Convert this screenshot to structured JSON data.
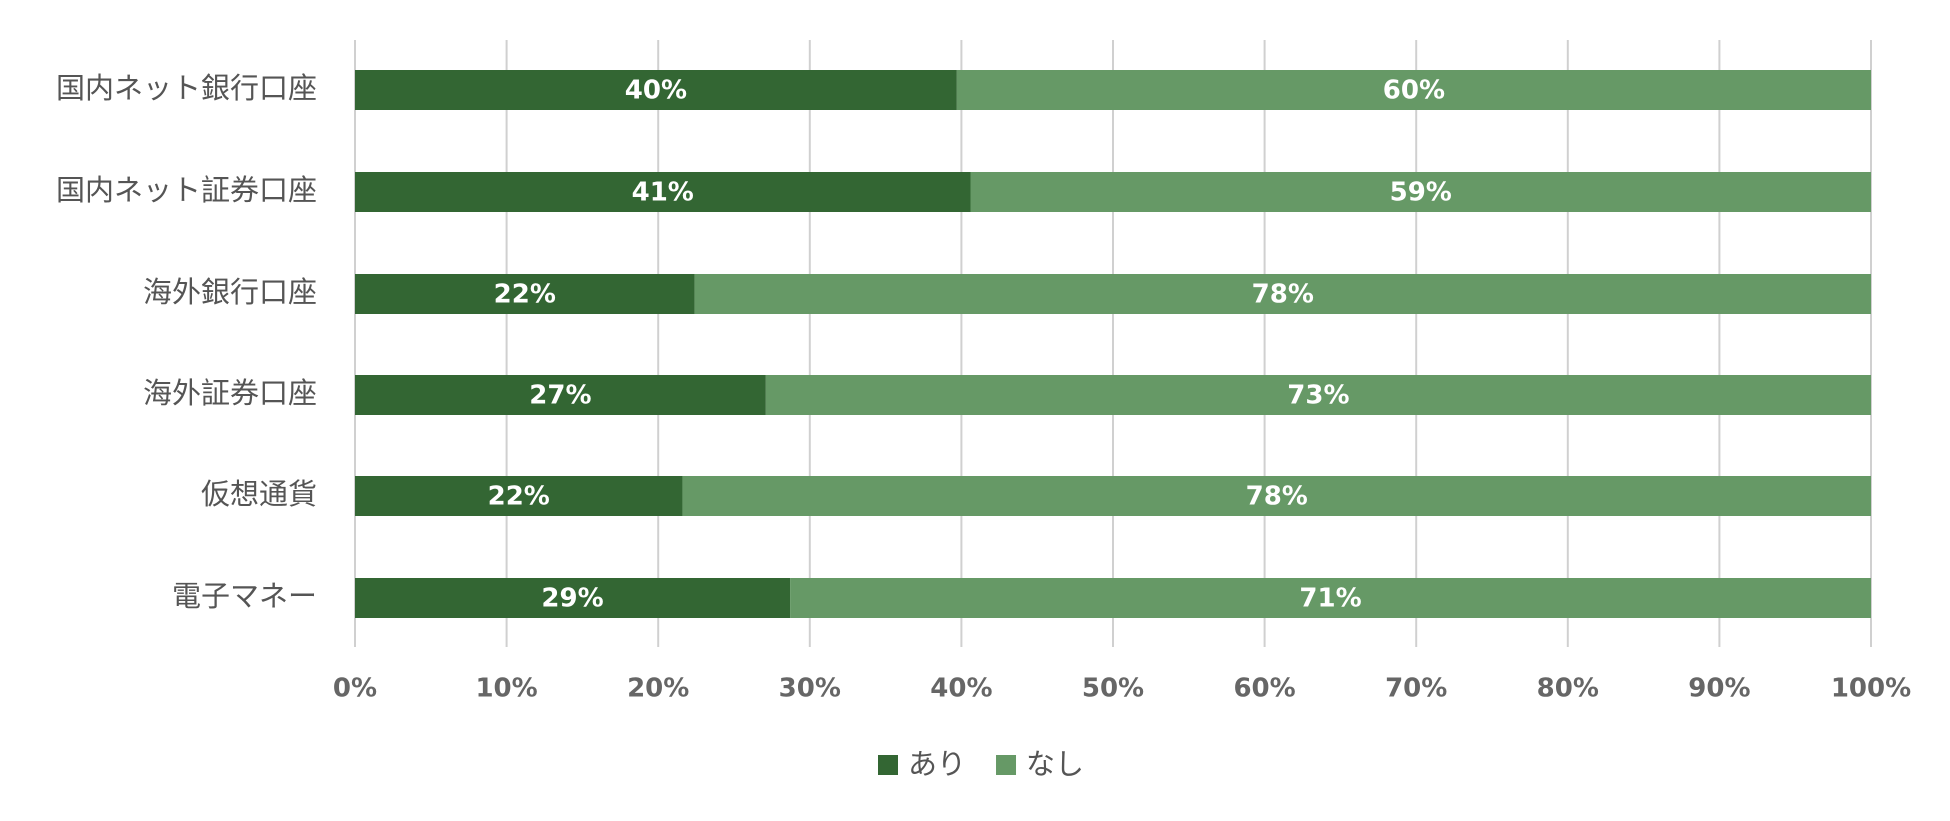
{
  "chart_data": {
    "type": "stacked-bar-horizontal",
    "categories": [
      "国内ネット銀行口座",
      "国内ネット証券口座",
      "海外銀行口座",
      "海外証券口座",
      "仮想通貨",
      "電子マネー"
    ],
    "series": [
      {
        "name": "あり",
        "color": "#336633",
        "values": [
          39.7,
          40.6,
          22.4,
          27.1,
          21.6,
          28.7
        ],
        "value_labels": [
          "40%",
          "41%",
          "22%",
          "27%",
          "22%",
          "29%"
        ]
      },
      {
        "name": "なし",
        "color": "#669966",
        "values": [
          60.3,
          59.4,
          77.6,
          72.9,
          78.4,
          71.3
        ],
        "value_labels": [
          "60%",
          "59%",
          "78%",
          "73%",
          "78%",
          "71%"
        ]
      }
    ],
    "xlim": [
      0,
      100
    ],
    "xticks": [
      {
        "value": 0,
        "label": "0%"
      },
      {
        "value": 10,
        "label": "10%"
      },
      {
        "value": 20,
        "label": "20%"
      },
      {
        "value": 30,
        "label": "30%"
      },
      {
        "value": 40,
        "label": "40%"
      },
      {
        "value": 50,
        "label": "50%"
      },
      {
        "value": 60,
        "label": "60%"
      },
      {
        "value": 70,
        "label": "70%"
      },
      {
        "value": 80,
        "label": "80%"
      },
      {
        "value": 90,
        "label": "90%"
      },
      {
        "value": 100,
        "label": "100%"
      }
    ],
    "grid": true,
    "legend": "bottom"
  }
}
